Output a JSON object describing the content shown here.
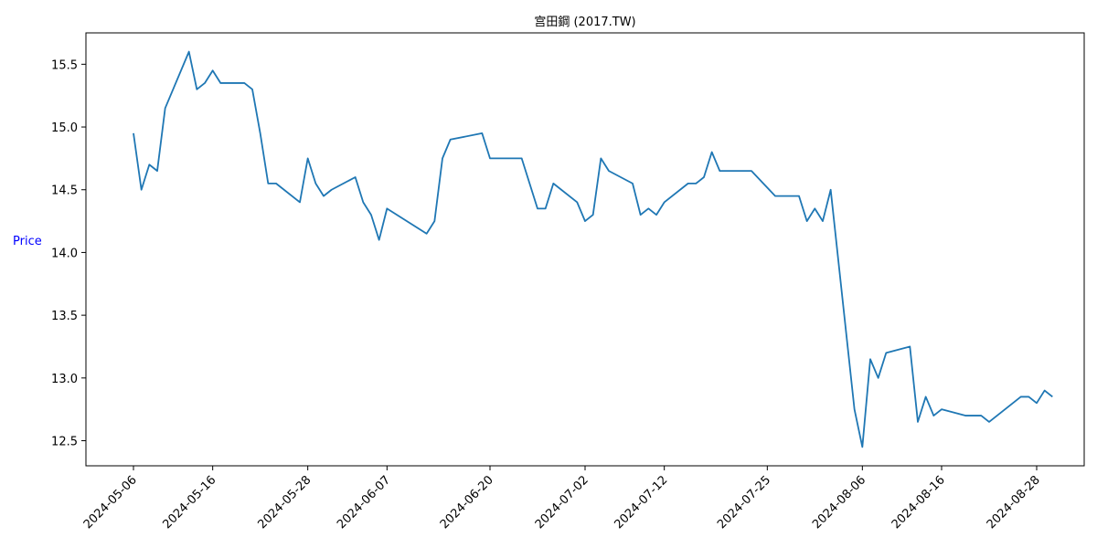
{
  "chart_data": {
    "type": "line",
    "title": "宫田鋼 (2017.TW)",
    "xlabel": "",
    "ylabel": "Price",
    "ylabel_color": "#0000ff",
    "line_color": "#1f77b4",
    "grid": false,
    "legend": "none",
    "ylim": [
      12.3,
      15.75
    ],
    "xlim": [
      "2024-04-30",
      "2024-09-03"
    ],
    "yticks": [
      12.5,
      13.0,
      13.5,
      14.0,
      14.5,
      15.0,
      15.5
    ],
    "ytick_labels": [
      "12.5",
      "13.0",
      "13.5",
      "14.0",
      "14.5",
      "15.0",
      "15.5"
    ],
    "xticks": [
      "2024-05-06",
      "2024-05-16",
      "2024-05-28",
      "2024-06-07",
      "2024-06-20",
      "2024-07-02",
      "2024-07-12",
      "2024-07-25",
      "2024-08-06",
      "2024-08-16",
      "2024-08-28"
    ],
    "series": [
      {
        "x": [
          "2024-05-06",
          "2024-05-07",
          "2024-05-08",
          "2024-05-09",
          "2024-05-10",
          "2024-05-13",
          "2024-05-14",
          "2024-05-15",
          "2024-05-16",
          "2024-05-17",
          "2024-05-20",
          "2024-05-21",
          "2024-05-22",
          "2024-05-23",
          "2024-05-24",
          "2024-05-27",
          "2024-05-28",
          "2024-05-29",
          "2024-05-30",
          "2024-05-31",
          "2024-06-03",
          "2024-06-04",
          "2024-06-05",
          "2024-06-06",
          "2024-06-07",
          "2024-06-12",
          "2024-06-13",
          "2024-06-14",
          "2024-06-15",
          "2024-06-19",
          "2024-06-20",
          "2024-06-21",
          "2024-06-24",
          "2024-06-25",
          "2024-06-26",
          "2024-06-27",
          "2024-06-28",
          "2024-07-01",
          "2024-07-02",
          "2024-07-03",
          "2024-07-04",
          "2024-07-05",
          "2024-07-08",
          "2024-07-09",
          "2024-07-10",
          "2024-07-11",
          "2024-07-12",
          "2024-07-15",
          "2024-07-16",
          "2024-07-17",
          "2024-07-18",
          "2024-07-19",
          "2024-07-22",
          "2024-07-23",
          "2024-07-26",
          "2024-07-29",
          "2024-07-30",
          "2024-07-31",
          "2024-08-01",
          "2024-08-02",
          "2024-08-05",
          "2024-08-06",
          "2024-08-07",
          "2024-08-08",
          "2024-08-09",
          "2024-08-12",
          "2024-08-13",
          "2024-08-14",
          "2024-08-15",
          "2024-08-16",
          "2024-08-19",
          "2024-08-20",
          "2024-08-21",
          "2024-08-22",
          "2024-08-23",
          "2024-08-26",
          "2024-08-27",
          "2024-08-28",
          "2024-08-29",
          "2024-08-30"
        ],
        "y": [
          14.95,
          14.5,
          14.7,
          14.65,
          15.15,
          15.6,
          15.3,
          15.35,
          15.45,
          15.35,
          15.35,
          15.3,
          14.95,
          14.55,
          14.55,
          14.4,
          14.75,
          14.55,
          14.45,
          14.5,
          14.6,
          14.4,
          14.3,
          14.1,
          14.35,
          14.15,
          14.25,
          14.75,
          14.9,
          14.95,
          14.75,
          14.75,
          14.75,
          14.55,
          14.35,
          14.35,
          14.55,
          14.4,
          14.25,
          14.3,
          14.75,
          14.65,
          14.55,
          14.3,
          14.35,
          14.3,
          14.4,
          14.55,
          14.55,
          14.6,
          14.8,
          14.65,
          14.65,
          14.65,
          14.45,
          14.45,
          14.25,
          14.35,
          14.25,
          14.5,
          12.75,
          12.45,
          13.15,
          13.0,
          13.2,
          13.25,
          12.65,
          12.85,
          12.7,
          12.75,
          12.7,
          12.7,
          12.7,
          12.65,
          12.7,
          12.85,
          12.85,
          12.8,
          12.9,
          12.85
        ]
      }
    ]
  }
}
